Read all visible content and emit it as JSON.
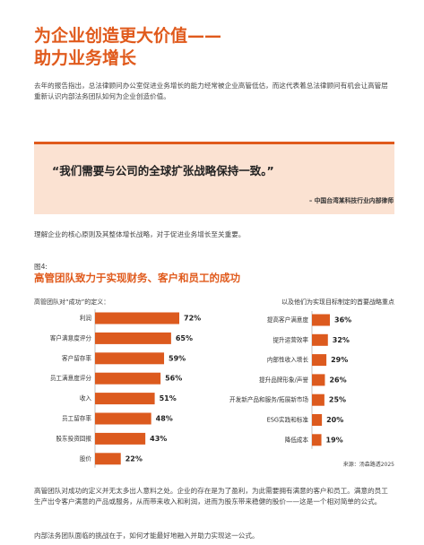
{
  "header": {
    "title_line1": "为企业创造更大价值——",
    "title_line2": "助力业务增长"
  },
  "intro": "去年的报告指出，总法律顾问办公室促进业务增长的能力经常被企业高管低估，而这代表着总法律顾问有机会让高管层重新认识内部法务团队如何为企业创造价值。",
  "quote": {
    "text": "“我们需要与公司的全球扩张战略保持一致。”",
    "attribution": "– 中国台湾某科技行业内部律师"
  },
  "statement": "理解企业的核心原则及其整体增长战略，对于促进业务增长至关重要。",
  "figure": {
    "label": "图4:",
    "title": "高管团队致力于实现财务、客户和员工的成功",
    "source": "来源：汤森路透2025"
  },
  "chart_data": [
    {
      "type": "bar",
      "orientation": "horizontal",
      "subtitle": "高管团队对“成功”的定义：",
      "color": "#dc5a1e",
      "categories": [
        "利润",
        "客户满意度评分",
        "客户留存率",
        "员工满意度评分",
        "收入",
        "员工留存率",
        "股东投资回报",
        "股价"
      ],
      "values": [
        72,
        65,
        59,
        56,
        51,
        48,
        43,
        22
      ],
      "value_labels": [
        "72%",
        "65%",
        "59%",
        "56%",
        "51%",
        "48%",
        "43%",
        "22%"
      ]
    },
    {
      "type": "bar",
      "orientation": "horizontal",
      "subtitle": "以及他们为实现目标制定的首要战略重点",
      "color": "#dc5a1e",
      "categories": [
        "提高客户满意度",
        "提升运营效率",
        "内部性收入增长",
        "提升品牌形象/声誉",
        "开发新产品和服务/拓展新市场",
        "ESG实践和标准",
        "降低成本"
      ],
      "values": [
        36,
        32,
        29,
        26,
        25,
        20,
        19
      ],
      "value_labels": [
        "36%",
        "32%",
        "29%",
        "26%",
        "25%",
        "20%",
        "19%"
      ]
    }
  ],
  "body": [
    "高管团队对成功的定义并无太多出人意料之处。企业的存在是为了盈利，为此需要拥有满意的客户和员工。满意的员工生产出令客户满意的产品或服务，从而带来收入和利润，进而为股东带来稳健的股价——这是一个相对简单的公式。",
    "内部法务团队面临的挑战在于，如何才能最好地融入并助力实现这一公式。"
  ]
}
